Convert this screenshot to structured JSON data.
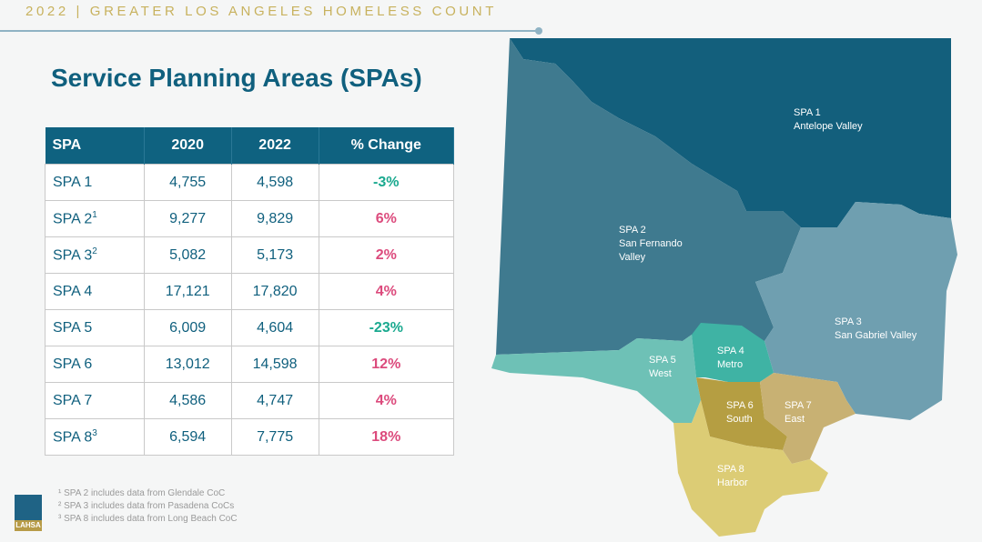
{
  "header": "2022 | GREATER LOS ANGELES HOMELESS COUNT",
  "title": "Service Planning Areas (SPAs)",
  "table": {
    "headers": [
      "SPA",
      "2020",
      "2022",
      "% Change"
    ],
    "rows": [
      {
        "spa": "SPA 1",
        "sup": "",
        "y2020": "4,755",
        "y2022": "4,598",
        "change": "-3%",
        "dir": "neg"
      },
      {
        "spa": "SPA 2",
        "sup": "1",
        "y2020": "9,277",
        "y2022": "9,829",
        "change": "6%",
        "dir": "pos"
      },
      {
        "spa": "SPA 3",
        "sup": "2",
        "y2020": "5,082",
        "y2022": "5,173",
        "change": "2%",
        "dir": "pos"
      },
      {
        "spa": "SPA 4",
        "sup": "",
        "y2020": "17,121",
        "y2022": "17,820",
        "change": "4%",
        "dir": "pos"
      },
      {
        "spa": "SPA 5",
        "sup": "",
        "y2020": "6,009",
        "y2022": "4,604",
        "change": "-23%",
        "dir": "neg"
      },
      {
        "spa": "SPA 6",
        "sup": "",
        "y2020": "13,012",
        "y2022": "14,598",
        "change": "12%",
        "dir": "pos"
      },
      {
        "spa": "SPA 7",
        "sup": "",
        "y2020": "4,586",
        "y2022": "4,747",
        "change": "4%",
        "dir": "pos"
      },
      {
        "spa": "SPA 8",
        "sup": "3",
        "y2020": "6,594",
        "y2022": "7,775",
        "change": "18%",
        "dir": "pos"
      }
    ]
  },
  "notes": [
    "¹ SPA 2 includes data from Glendale CoC",
    "² SPA 3 includes data from Pasadena CoCs",
    "³ SPA 8 includes data from Long Beach CoC"
  ],
  "logo": "LAHSA",
  "map": {
    "colors": {
      "spa1": "#135f7c",
      "spa2": "#3f7a8f",
      "spa3": "#6f9fb0",
      "spa4": "#3fb3a4",
      "spa5": "#6ec1b6",
      "spa6": "#b59e42",
      "spa7": "#c8b173",
      "spa8": "#dccc75"
    },
    "labels": {
      "spa1": [
        "SPA 1",
        "Antelope Valley"
      ],
      "spa2": [
        "SPA 2",
        "San Fernando",
        "Valley"
      ],
      "spa3": [
        "SPA 3",
        "San Gabriel Valley"
      ],
      "spa4": [
        "SPA 4",
        "Metro"
      ],
      "spa5": [
        "SPA 5",
        "West"
      ],
      "spa6": [
        "SPA 6",
        "South"
      ],
      "spa7": [
        "SPA 7",
        "East"
      ],
      "spa8": [
        "SPA 8",
        "Harbor"
      ]
    }
  }
}
